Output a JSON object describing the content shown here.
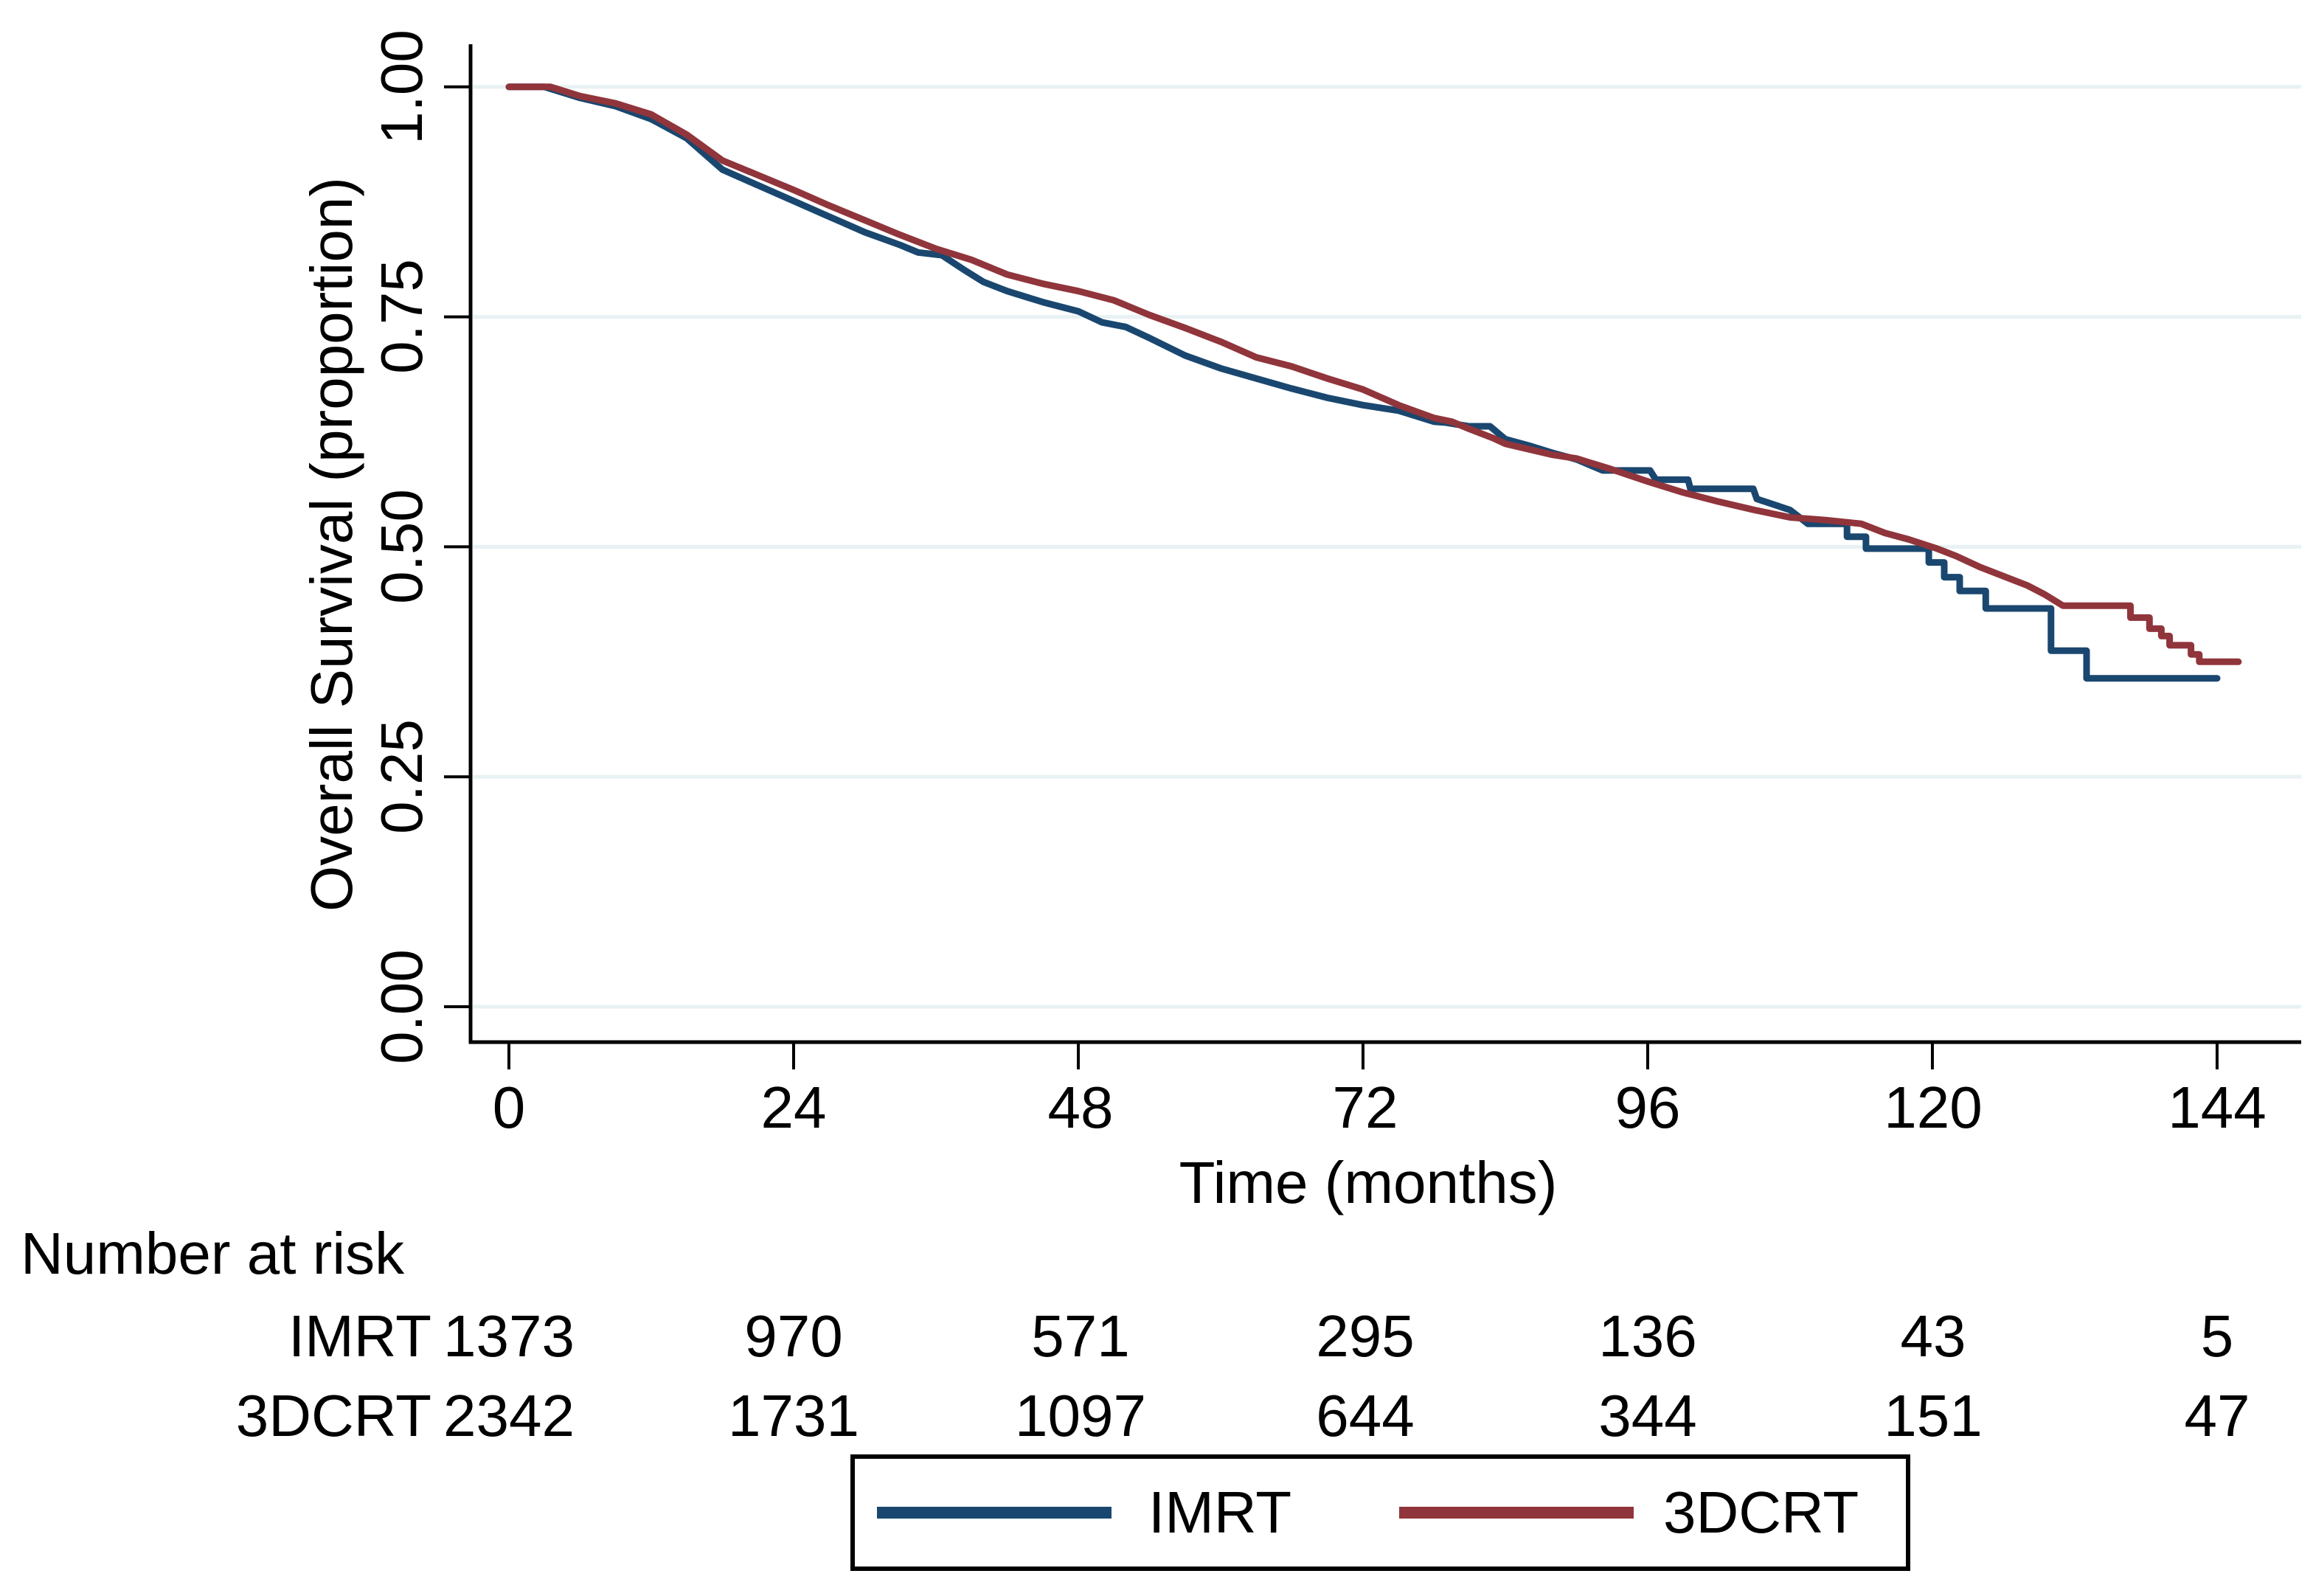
{
  "chart_data": {
    "type": "line",
    "subtype": "kaplan-meier-step",
    "title": "",
    "xlabel": "Time (months)",
    "ylabel": "Overall Survival (proportion)",
    "xlim": [
      0,
      150
    ],
    "ylim": [
      0.0,
      1.0
    ],
    "grid": "horizontal",
    "legend_position": "bottom",
    "x_ticks": {
      "labels": [
        "0",
        "24",
        "48",
        "72",
        "96",
        "120",
        "144"
      ],
      "values": [
        0,
        24,
        48,
        72,
        96,
        120,
        144
      ]
    },
    "y_ticks": {
      "labels": [
        "1.00",
        "0.75",
        "0.50",
        "0.25",
        "0.00"
      ],
      "values": [
        1.0,
        0.75,
        0.5,
        0.25,
        0.0
      ]
    },
    "series": [
      {
        "name": "IMRT",
        "color": "#1a476f",
        "points": [
          [
            0,
            1
          ],
          [
            3,
            1
          ],
          [
            6,
            0.988
          ],
          [
            9,
            0.979
          ],
          [
            12,
            0.965
          ],
          [
            15,
            0.944
          ],
          [
            18,
            0.91
          ],
          [
            21,
            0.893
          ],
          [
            24,
            0.876
          ],
          [
            27,
            0.859
          ],
          [
            30,
            0.842
          ],
          [
            33,
            0.828
          ],
          [
            34.5,
            0.82
          ],
          [
            36.5,
            0.817
          ],
          [
            38.5,
            0.8
          ],
          [
            40,
            0.788
          ],
          [
            42,
            0.778
          ],
          [
            45,
            0.766
          ],
          [
            48,
            0.756
          ],
          [
            50,
            0.744
          ],
          [
            52,
            0.739
          ],
          [
            54,
            0.727
          ],
          [
            57,
            0.708
          ],
          [
            60,
            0.694
          ],
          [
            63,
            0.683
          ],
          [
            66,
            0.672
          ],
          [
            69,
            0.662
          ],
          [
            72,
            0.654
          ],
          [
            75,
            0.648
          ],
          [
            78,
            0.636
          ],
          [
            79,
            0.635
          ],
          [
            80.9,
            0.631
          ],
          [
            82.7,
            0.631
          ],
          [
            84,
            0.617
          ],
          [
            86,
            0.61
          ],
          [
            88,
            0.602
          ],
          [
            90,
            0.595
          ],
          [
            92.2,
            0.583
          ],
          [
            96.2,
            0.583
          ],
          [
            96.7,
            0.573
          ],
          [
            99.4,
            0.573
          ],
          [
            99.6,
            0.563
          ],
          [
            104.9,
            0.563
          ],
          [
            105.2,
            0.552
          ],
          [
            108,
            0.54
          ],
          [
            109.5,
            0.525
          ],
          [
            112.8,
            0.525
          ],
          [
            112.8,
            0.511
          ],
          [
            114.4,
            0.511
          ],
          [
            114.4,
            0.498
          ],
          [
            119.7,
            0.498
          ],
          [
            119.7,
            0.483
          ],
          [
            121,
            0.483
          ],
          [
            121,
            0.467
          ],
          [
            122.3,
            0.467
          ],
          [
            122.3,
            0.452
          ],
          [
            124.5,
            0.452
          ],
          [
            124.5,
            0.433
          ],
          [
            130,
            0.433
          ],
          [
            130,
            0.387
          ],
          [
            133,
            0.387
          ],
          [
            133,
            0.357
          ],
          [
            144,
            0.357
          ]
        ]
      },
      {
        "name": "3DCRT",
        "color": "#90353b",
        "points": [
          [
            0,
            1
          ],
          [
            3.5,
            1
          ],
          [
            6,
            0.99
          ],
          [
            9,
            0.982
          ],
          [
            12,
            0.97
          ],
          [
            15,
            0.948
          ],
          [
            18,
            0.92
          ],
          [
            21,
            0.904
          ],
          [
            24,
            0.888
          ],
          [
            27,
            0.871
          ],
          [
            30,
            0.855
          ],
          [
            33,
            0.839
          ],
          [
            36,
            0.824
          ],
          [
            39,
            0.812
          ],
          [
            42,
            0.796
          ],
          [
            45,
            0.786
          ],
          [
            48,
            0.778
          ],
          [
            51,
            0.768
          ],
          [
            54,
            0.752
          ],
          [
            57,
            0.738
          ],
          [
            60,
            0.723
          ],
          [
            63,
            0.706
          ],
          [
            66,
            0.696
          ],
          [
            69,
            0.683
          ],
          [
            72,
            0.671
          ],
          [
            75,
            0.654
          ],
          [
            78,
            0.64
          ],
          [
            79.5,
            0.636
          ],
          [
            81,
            0.628
          ],
          [
            83,
            0.618
          ],
          [
            84,
            0.612
          ],
          [
            86,
            0.606
          ],
          [
            88,
            0.6
          ],
          [
            90,
            0.596
          ],
          [
            93,
            0.584
          ],
          [
            96,
            0.571
          ],
          [
            99,
            0.559
          ],
          [
            102,
            0.549
          ],
          [
            105,
            0.54
          ],
          [
            108,
            0.532
          ],
          [
            111,
            0.529
          ],
          [
            114,
            0.525
          ],
          [
            116,
            0.515
          ],
          [
            118,
            0.508
          ],
          [
            120.4,
            0.498
          ],
          [
            122,
            0.49
          ],
          [
            124,
            0.478
          ],
          [
            126,
            0.468
          ],
          [
            128,
            0.458
          ],
          [
            129.5,
            0.448
          ],
          [
            131,
            0.436
          ],
          [
            136.7,
            0.436
          ],
          [
            136.7,
            0.423
          ],
          [
            138.3,
            0.423
          ],
          [
            138.3,
            0.411
          ],
          [
            139.3,
            0.411
          ],
          [
            139.3,
            0.403
          ],
          [
            140,
            0.403
          ],
          [
            140,
            0.393
          ],
          [
            141.8,
            0.393
          ],
          [
            141.8,
            0.383
          ],
          [
            142.5,
            0.383
          ],
          [
            142.5,
            0.375
          ],
          [
            145.8,
            0.375
          ]
        ]
      }
    ]
  },
  "risk_table": {
    "title": "Number at risk",
    "time_points": [
      0,
      24,
      48,
      72,
      96,
      120,
      144
    ],
    "rows": [
      {
        "label": "IMRT",
        "counts": [
          "1373",
          "970",
          "571",
          "295",
          "136",
          "43",
          "5"
        ]
      },
      {
        "label": "3DCRT",
        "counts": [
          "2342",
          "1731",
          "1097",
          "644",
          "344",
          "151",
          "47"
        ]
      }
    ]
  },
  "legend": {
    "items": [
      {
        "label": "IMRT",
        "color": "#1a476f"
      },
      {
        "label": "3DCRT",
        "color": "#90353b"
      }
    ]
  },
  "colors": {
    "imrt": "#1a476f",
    "dcrt": "#90353b",
    "grid": "#e8f1f3",
    "axis": "#000000",
    "background": "#ffffff"
  }
}
